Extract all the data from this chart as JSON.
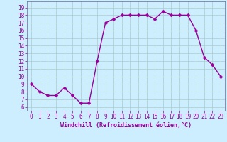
{
  "x": [
    0,
    1,
    2,
    3,
    4,
    5,
    6,
    7,
    8,
    9,
    10,
    11,
    12,
    13,
    14,
    15,
    16,
    17,
    18,
    19,
    20,
    21,
    22,
    23
  ],
  "y": [
    9,
    8,
    7.5,
    7.5,
    8.5,
    7.5,
    6.5,
    6.5,
    12,
    17,
    17.5,
    18,
    18,
    18,
    18,
    17.5,
    18.5,
    18,
    18,
    18,
    16,
    12.5,
    11.5,
    10
  ],
  "line_color": "#990099",
  "marker_color": "#990099",
  "bg_color": "#cceeff",
  "grid_color": "#aacccc",
  "xlabel": "Windchill (Refroidissement éolien,°C)",
  "xlim": [
    -0.5,
    23.5
  ],
  "ylim": [
    5.5,
    19.8
  ],
  "yticks": [
    6,
    7,
    8,
    9,
    10,
    11,
    12,
    13,
    14,
    15,
    16,
    17,
    18,
    19
  ],
  "xticks": [
    0,
    1,
    2,
    3,
    4,
    5,
    6,
    7,
    8,
    9,
    10,
    11,
    12,
    13,
    14,
    15,
    16,
    17,
    18,
    19,
    20,
    21,
    22,
    23
  ],
  "xlabel_fontsize": 6,
  "tick_fontsize": 5.5,
  "line_width": 1.0,
  "marker_size": 2.5
}
